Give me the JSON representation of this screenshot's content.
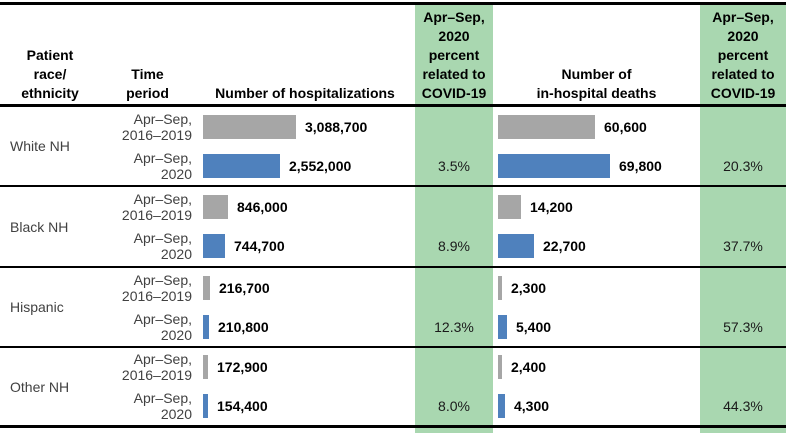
{
  "colors": {
    "green_highlight": "#a9d7b0",
    "gray_bar": "#a6a6a6",
    "blue_bar": "#4f81bd",
    "muted_text": "#414141"
  },
  "header": {
    "race": "Patient\nrace/\nethnicity",
    "time": "Time\nperiod",
    "hospitalizations": "Number of hospitalizations",
    "covid_pct_hosp": "Apr–Sep,\n2020\npercent\nrelated to\nCOVID-19",
    "deaths": "Number of\nin-hospital deaths",
    "covid_pct_deaths": "Apr–Sep,\n2020\npercent\nrelated to\nCOVID-19"
  },
  "chart_data": {
    "type": "bar",
    "orientation": "horizontal",
    "grid": false,
    "legend": "none",
    "period_labels": [
      "Apr–Sep,\n2016–2019",
      "Apr–Sep,\n2020"
    ],
    "panels": [
      {
        "title": "Number of hospitalizations",
        "xlim": [
          0,
          3100000
        ]
      },
      {
        "title": "Number of in-hospital deaths",
        "xlim": [
          0,
          70000
        ]
      }
    ],
    "groups": [
      {
        "race": "White NH",
        "hospitalizations": {
          "prior": 3088700,
          "y2020": 2552000,
          "prior_label": "3,088,700",
          "y2020_label": "2,552,000",
          "covid_pct": "3.5%"
        },
        "deaths": {
          "prior": 60600,
          "y2020": 69800,
          "prior_label": "60,600",
          "y2020_label": "69,800",
          "covid_pct": "20.3%"
        }
      },
      {
        "race": "Black NH",
        "hospitalizations": {
          "prior": 846000,
          "y2020": 744700,
          "prior_label": "846,000",
          "y2020_label": "744,700",
          "covid_pct": "8.9%"
        },
        "deaths": {
          "prior": 14200,
          "y2020": 22700,
          "prior_label": "14,200",
          "y2020_label": "22,700",
          "covid_pct": "37.7%"
        }
      },
      {
        "race": "Hispanic",
        "hospitalizations": {
          "prior": 216700,
          "y2020": 210800,
          "prior_label": "216,700",
          "y2020_label": "210,800",
          "covid_pct": "12.3%"
        },
        "deaths": {
          "prior": 2300,
          "y2020": 5400,
          "prior_label": "2,300",
          "y2020_label": "5,400",
          "covid_pct": "57.3%"
        }
      },
      {
        "race": "Other NH",
        "hospitalizations": {
          "prior": 172900,
          "y2020": 154400,
          "prior_label": "172,900",
          "y2020_label": "154,400",
          "covid_pct": "8.0%"
        },
        "deaths": {
          "prior": 2400,
          "y2020": 4300,
          "prior_label": "2,400",
          "y2020_label": "4,300",
          "covid_pct": "44.3%"
        }
      }
    ]
  }
}
